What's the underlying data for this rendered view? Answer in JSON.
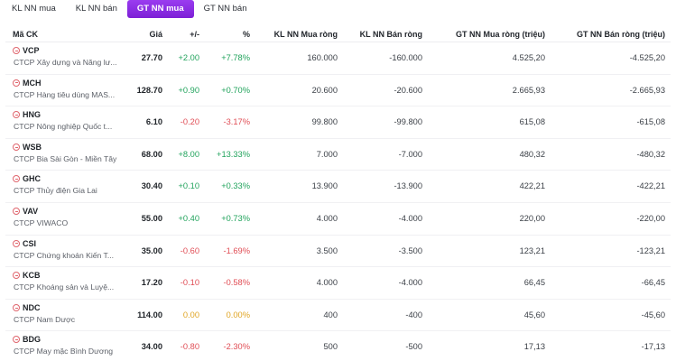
{
  "tabs": [
    "KL NN mua",
    "KL NN bán",
    "GT NN mua",
    "GT NN bán"
  ],
  "active_tab": 2,
  "headers": [
    "Mã CK",
    "Giá",
    "+/-",
    "%",
    "KL NN Mua ròng",
    "KL NN Bán ròng",
    "GT NN Mua ròng (triệu)",
    "GT NN Bán ròng (triệu)"
  ],
  "rows": [
    {
      "code": "VCP",
      "name": "CTCP Xây dựng và Năng lư...",
      "price": "27.70",
      "change": "+2.00",
      "pct": "+7.78%",
      "kl_mua": "160.000",
      "kl_ban": "-160.000",
      "gt_mua": "4.525,20",
      "gt_ban": "-4.525,20",
      "trend": "up"
    },
    {
      "code": "MCH",
      "name": "CTCP Hàng tiêu dùng MAS...",
      "price": "128.70",
      "change": "+0.90",
      "pct": "+0.70%",
      "kl_mua": "20.600",
      "kl_ban": "-20.600",
      "gt_mua": "2.665,93",
      "gt_ban": "-2.665,93",
      "trend": "up"
    },
    {
      "code": "HNG",
      "name": "CTCP Nông nghiệp Quốc t...",
      "price": "6.10",
      "change": "-0.20",
      "pct": "-3.17%",
      "kl_mua": "99.800",
      "kl_ban": "-99.800",
      "gt_mua": "615,08",
      "gt_ban": "-615,08",
      "trend": "down"
    },
    {
      "code": "WSB",
      "name": "CTCP Bia Sài Gòn - Miền Tây",
      "price": "68.00",
      "change": "+8.00",
      "pct": "+13.33%",
      "kl_mua": "7.000",
      "kl_ban": "-7.000",
      "gt_mua": "480,32",
      "gt_ban": "-480,32",
      "trend": "up"
    },
    {
      "code": "GHC",
      "name": "CTCP Thủy điện Gia Lai",
      "price": "30.40",
      "change": "+0.10",
      "pct": "+0.33%",
      "kl_mua": "13.900",
      "kl_ban": "-13.900",
      "gt_mua": "422,21",
      "gt_ban": "-422,21",
      "trend": "up"
    },
    {
      "code": "VAV",
      "name": "CTCP VIWACO",
      "price": "55.00",
      "change": "+0.40",
      "pct": "+0.73%",
      "kl_mua": "4.000",
      "kl_ban": "-4.000",
      "gt_mua": "220,00",
      "gt_ban": "-220,00",
      "trend": "up"
    },
    {
      "code": "CSI",
      "name": "CTCP Chứng khoán Kiến T...",
      "price": "35.00",
      "change": "-0.60",
      "pct": "-1.69%",
      "kl_mua": "3.500",
      "kl_ban": "-3.500",
      "gt_mua": "123,21",
      "gt_ban": "-123,21",
      "trend": "down"
    },
    {
      "code": "KCB",
      "name": "CTCP Khoáng sản và Luyệ...",
      "price": "17.20",
      "change": "-0.10",
      "pct": "-0.58%",
      "kl_mua": "4.000",
      "kl_ban": "-4.000",
      "gt_mua": "66,45",
      "gt_ban": "-66,45",
      "trend": "down"
    },
    {
      "code": "NDC",
      "name": "CTCP Nam Dược",
      "price": "114.00",
      "change": "0.00",
      "pct": "0.00%",
      "kl_mua": "400",
      "kl_ban": "-400",
      "gt_mua": "45,60",
      "gt_ban": "-45,60",
      "trend": "ref"
    },
    {
      "code": "BDG",
      "name": "CTCP May mặc Bình Dương",
      "price": "34.00",
      "change": "-0.80",
      "pct": "-2.30%",
      "kl_mua": "500",
      "kl_ban": "-500",
      "gt_mua": "17,13",
      "gt_ban": "-17,13",
      "trend": "down"
    }
  ],
  "colors": {
    "accent": "#8e2de2",
    "up": "#21a35c",
    "down": "#e04c54",
    "ref": "#e0a421"
  }
}
